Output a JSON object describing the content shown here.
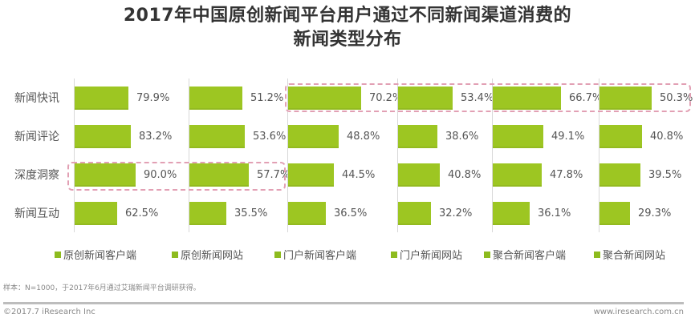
{
  "header": {
    "title_line1": "2017年中国原创新闻平台用户通过不同新闻渠道消费的",
    "title_line2": "新闻类型分布"
  },
  "chart_data": {
    "type": "bar",
    "orientation": "horizontal",
    "layout": "small-multiples",
    "title": "2017年中国原创新闻平台用户通过不同新闻渠道消费的新闻类型分布",
    "categories": [
      "新闻快讯",
      "新闻评论",
      "深度洞察",
      "新闻互动"
    ],
    "series": [
      {
        "name": "原创新闻客户端",
        "values": [
          79.9,
          83.2,
          90.0,
          62.5
        ]
      },
      {
        "name": "原创新闻网站",
        "values": [
          51.2,
          53.6,
          57.7,
          35.5
        ]
      },
      {
        "name": "门户新闻客户端",
        "values": [
          70.2,
          48.8,
          44.5,
          36.5
        ]
      },
      {
        "name": "门户新闻网站",
        "values": [
          53.4,
          38.6,
          40.8,
          32.2
        ]
      },
      {
        "name": "聚合新闻客户端",
        "values": [
          66.7,
          49.1,
          47.8,
          36.1
        ]
      },
      {
        "name": "聚合新闻网站",
        "values": [
          50.3,
          40.8,
          39.5,
          29.3
        ]
      }
    ],
    "value_suffix": "%",
    "xlabel": "",
    "ylabel": "",
    "grid": false,
    "legend_position": "bottom",
    "annotations": [
      {
        "type": "dashed-box",
        "covers": "深度洞察 row, 原创新闻客户端 & 原创新闻网站"
      },
      {
        "type": "dashed-box",
        "covers": "新闻快讯 row, 门户/聚合 channels"
      }
    ],
    "bar_color": "#9dc622",
    "highlight_color": "#e2a0b4"
  },
  "labels": {
    "rows": [
      "新闻快讯",
      "新闻评论",
      "深度洞察",
      "新闻互动"
    ],
    "values": [
      [
        "79.9%",
        "83.2%",
        "90.0%",
        "62.5%"
      ],
      [
        "51.2%",
        "53.6%",
        "57.7%",
        "35.5%"
      ],
      [
        "70.2%",
        "48.8%",
        "44.5%",
        "36.5%"
      ],
      [
        "53.4%",
        "38.6%",
        "40.8%",
        "32.2%"
      ],
      [
        "66.7%",
        "49.1%",
        "47.8%",
        "36.1%"
      ],
      [
        "50.3%",
        "40.8%",
        "39.5%",
        "29.3%"
      ]
    ]
  },
  "legend": {
    "items": [
      "原创新闻客户端",
      "原创新闻网站",
      "门户新闻客户端",
      "门户新闻网站",
      "聚合新闻客户端",
      "聚合新闻网站"
    ]
  },
  "footer": {
    "note": "样本：N=1000，于2017年6月通过艾瑞新闻平台调研获得。",
    "copyright": "©2017.7 iResearch Inc",
    "website": "www.iresearch.com.cn"
  }
}
